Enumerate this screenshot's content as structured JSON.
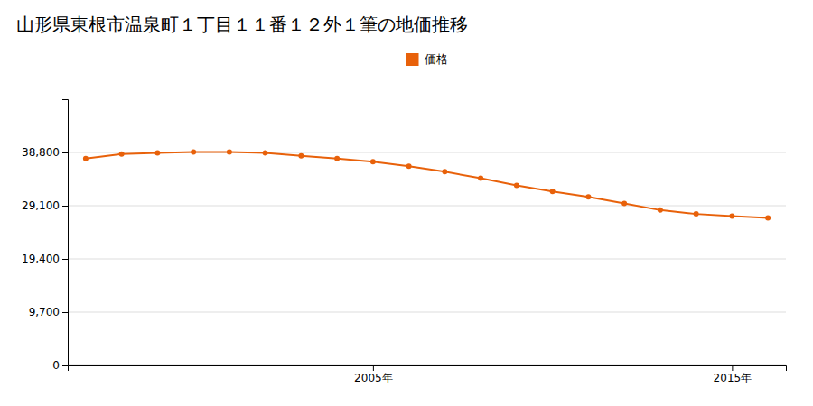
{
  "chart_data": {
    "type": "line",
    "title": "山形県東根市温泉町１丁目１１番１２外１筆の地価推移",
    "x": [
      1997,
      1998,
      1999,
      2000,
      2001,
      2002,
      2003,
      2004,
      2005,
      2006,
      2007,
      2008,
      2009,
      2010,
      2011,
      2012,
      2013,
      2014,
      2015,
      2016
    ],
    "series": [
      {
        "name": "価格",
        "color": "#e8610a",
        "marker": "circle",
        "values": [
          37700,
          38500,
          38700,
          38900,
          38900,
          38700,
          38200,
          37700,
          37100,
          36300,
          35300,
          34100,
          32800,
          31700,
          30700,
          29500,
          28300,
          27600,
          27200,
          26900
        ]
      }
    ],
    "xlim": [
      1996.5,
      2016.5
    ],
    "xticks": [
      {
        "value": 2005,
        "label": "2005年"
      },
      {
        "value": 2015,
        "label": "2015年"
      }
    ],
    "ylim": [
      0,
      48500
    ],
    "yticks": [
      0,
      {
        "value": 9700,
        "label": "9,700"
      },
      {
        "value": 19400,
        "label": "19,400"
      },
      {
        "value": 29100,
        "label": "29,100"
      },
      {
        "value": 38800,
        "label": "38,800"
      }
    ],
    "grid": "y",
    "legend": "top"
  }
}
